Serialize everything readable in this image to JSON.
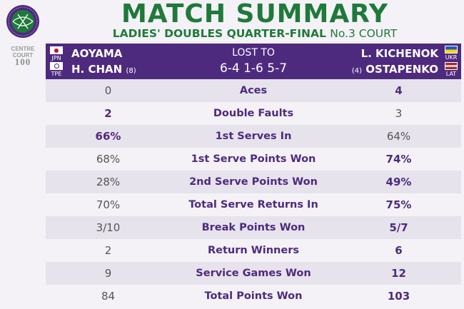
{
  "logo": {
    "ring_text": "THE CHAMPIONSHIPS · WIMBLEDON"
  },
  "badge": {
    "line1": "CENTRE",
    "line2": "COURT",
    "line3": "100"
  },
  "title": "MATCH SUMMARY",
  "subtitle": {
    "event": "LADIES' DOUBLES QUARTER-FINAL",
    "court": "No.3 COURT"
  },
  "match": {
    "left": [
      {
        "name": "AOYAMA",
        "country": "JPN",
        "seed": ""
      },
      {
        "name": "H. CHAN",
        "country": "TPE",
        "seed": "(8)"
      }
    ],
    "right": [
      {
        "name": "L. KICHENOK",
        "country": "UKR",
        "seed": ""
      },
      {
        "name": "OSTAPENKO",
        "country": "LAT",
        "seed": "(4)"
      }
    ],
    "result_label": "LOST TO",
    "score": "6-4 1-6 5-7"
  },
  "colors": {
    "green": "#1f7a3a",
    "purple": "#4e2a7f"
  },
  "stats": [
    {
      "label": "Aces",
      "left": "0",
      "right": "4",
      "winner": "right"
    },
    {
      "label": "Double Faults",
      "left": "2",
      "right": "3",
      "winner": "left"
    },
    {
      "label": "1st Serves In",
      "left": "66%",
      "right": "64%",
      "winner": "left"
    },
    {
      "label": "1st Serve Points Won",
      "left": "68%",
      "right": "74%",
      "winner": "right"
    },
    {
      "label": "2nd Serve Points Won",
      "left": "28%",
      "right": "49%",
      "winner": "right"
    },
    {
      "label": "Total Serve Returns In",
      "left": "70%",
      "right": "75%",
      "winner": "right"
    },
    {
      "label": "Break Points Won",
      "left": "3/10",
      "right": "5/7",
      "winner": "right"
    },
    {
      "label": "Return Winners",
      "left": "2",
      "right": "6",
      "winner": "right"
    },
    {
      "label": "Service Games Won",
      "left": "9",
      "right": "12",
      "winner": "right"
    },
    {
      "label": "Total Points Won",
      "left": "84",
      "right": "103",
      "winner": "right"
    }
  ]
}
